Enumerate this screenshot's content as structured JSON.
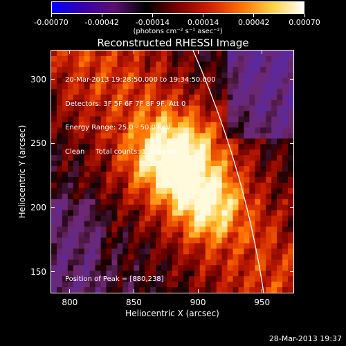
{
  "colorbar": {
    "tick_labels": [
      "-0.00070",
      "-0.00042",
      "-0.00014",
      "0.00014",
      "0.00042",
      "0.00070"
    ],
    "units": "(photons cm⁻² s⁻¹ asec⁻²)",
    "colormap": [
      "#0000ff",
      "#3a00aa",
      "#5a1070",
      "#000000",
      "#7a0000",
      "#d02000",
      "#ff7000",
      "#ffd040",
      "#ffffff"
    ]
  },
  "title": "Reconstructed RHESSI Image",
  "annotations": {
    "line1": "20-Mar-2013 19:28:50.000 to 19:34:50.000",
    "line2": "Detectors: 3F 5F 6F 7F 8F 9F, Att 0",
    "line3": "Energy Range: 25.0 - 50.0 keV",
    "line4": "Clean     Total counts: 1.37E+04",
    "peak": "Position of Peak = [880,238]"
  },
  "axes": {
    "xlabel": "Heliocentric X (arcsec)",
    "ylabel": "Heliocentric Y (arcsec)",
    "x_ticks": [
      "800",
      "850",
      "900",
      "950"
    ],
    "y_ticks": [
      "150",
      "200",
      "250",
      "300"
    ],
    "xlim": [
      785,
      975
    ],
    "ylim": [
      133,
      323
    ]
  },
  "peak_position": [
    880,
    238
  ],
  "footer_date": "28-Mar-2013 19:37"
}
